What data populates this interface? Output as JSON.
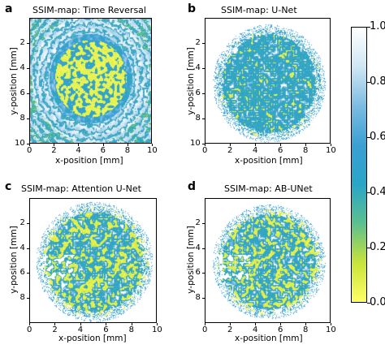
{
  "chart_data": [
    {
      "type": "heatmap",
      "panel": "a",
      "title": "SSIM-map: Time Reversal",
      "xlabel": "x-position [mm]",
      "ylabel": "y-position [mm]",
      "xlim": [
        0,
        10
      ],
      "ylim": [
        10,
        0
      ],
      "xticks": [
        "0",
        "2",
        "4",
        "6",
        "8",
        "10"
      ],
      "yticks": [
        "2",
        "4",
        "6",
        "8",
        "10"
      ],
      "pattern": "dense-yellow-core-with-ring",
      "core_center": [
        5.0,
        4.8
      ],
      "core_radius": [
        3.6,
        3.8
      ]
    },
    {
      "type": "heatmap",
      "panel": "b",
      "title": "SSIM-map: U-Net",
      "xlabel": "x-position [mm]",
      "ylabel": "y-position [mm]",
      "xlim": [
        0,
        10
      ],
      "ylim": [
        10,
        0
      ],
      "xticks": [
        "0",
        "2",
        "4",
        "6",
        "8",
        "10"
      ],
      "yticks": [
        "2",
        "4",
        "6",
        "8",
        "10"
      ],
      "pattern": "speckle",
      "core_center": [
        5.1,
        5.2
      ],
      "core_radius": [
        4.2,
        4.4
      ]
    },
    {
      "type": "heatmap",
      "panel": "c",
      "title": "SSIM-map: Attention U-Net",
      "xlabel": "x-position [mm]",
      "ylabel": "y-position [mm]",
      "xlim": [
        0,
        10
      ],
      "ylim": [
        10,
        0
      ],
      "xticks": [
        "0",
        "2",
        "4",
        "6",
        "8",
        "10"
      ],
      "yticks": [
        "2",
        "4",
        "6",
        "8"
      ],
      "pattern": "speckle-yellow",
      "core_center": [
        5.1,
        5.1
      ],
      "core_radius": [
        4.3,
        4.5
      ]
    },
    {
      "type": "heatmap",
      "panel": "d",
      "title": "SSIM-map: AB-UNet",
      "xlabel": "x-position [mm]",
      "ylabel": "y-position [mm]",
      "xlim": [
        0,
        10
      ],
      "ylim": [
        10,
        0
      ],
      "xticks": [
        "0",
        "2",
        "4",
        "6",
        "8",
        "10"
      ],
      "yticks": [
        "2",
        "4",
        "6",
        "8"
      ],
      "pattern": "speckle-yellow",
      "core_center": [
        5.1,
        5.1
      ],
      "core_radius": [
        4.2,
        4.3
      ]
    }
  ],
  "colorbar": {
    "range": [
      0.0,
      1.0
    ],
    "ticks": [
      "1.0",
      "0.8",
      "0.6",
      "0.4",
      "0.2",
      "0.0"
    ],
    "colormap": [
      "#ffff66",
      "#c8e33a",
      "#5cc08e",
      "#2aa5c7",
      "#3b9fd3",
      "#7cbce2",
      "#cfe6f3",
      "#ffffff"
    ]
  },
  "panels_labels": {
    "a": "a",
    "b": "b",
    "c": "c",
    "d": "d"
  }
}
